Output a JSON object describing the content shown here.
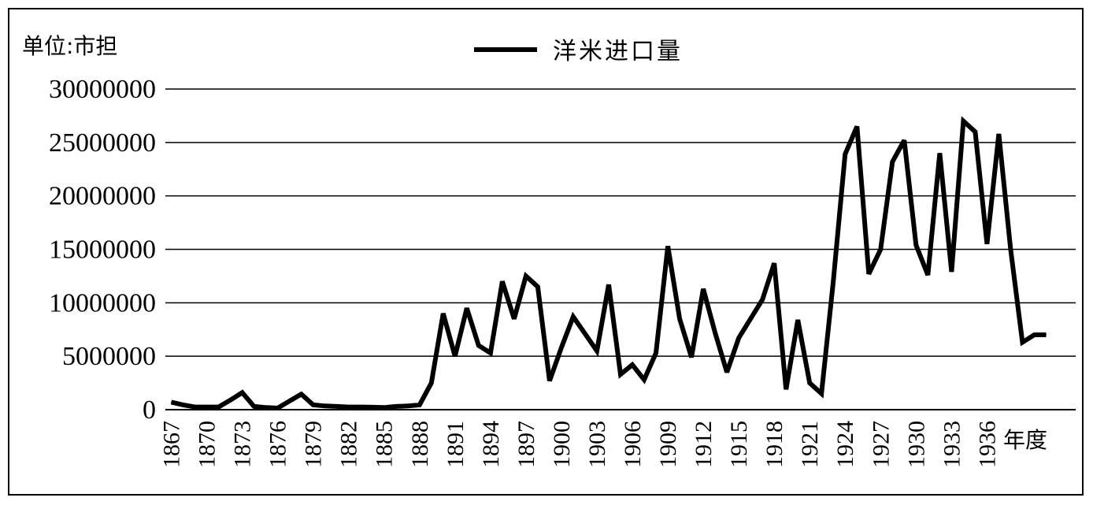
{
  "chart_data": {
    "type": "line",
    "unit_label": "单位:市担",
    "x_end_label": "年度",
    "legend_position": "top-center",
    "grid": true,
    "ylim": [
      0,
      30000000
    ],
    "y_ticks": [
      0,
      5000000,
      10000000,
      15000000,
      20000000,
      25000000,
      30000000
    ],
    "x_ticks": [
      1867,
      1870,
      1873,
      1876,
      1879,
      1882,
      1885,
      1888,
      1891,
      1894,
      1897,
      1900,
      1903,
      1906,
      1909,
      1912,
      1915,
      1918,
      1921,
      1924,
      1927,
      1930,
      1933,
      1936
    ],
    "colors": {
      "line": "#000000",
      "grid": "#000000"
    },
    "series": [
      {
        "name": "洋米进口量",
        "x": [
          1867,
          1868,
          1869,
          1870,
          1871,
          1872,
          1873,
          1874,
          1875,
          1876,
          1877,
          1878,
          1879,
          1880,
          1881,
          1882,
          1883,
          1884,
          1885,
          1886,
          1887,
          1888,
          1889,
          1890,
          1891,
          1892,
          1893,
          1894,
          1895,
          1896,
          1897,
          1898,
          1899,
          1900,
          1901,
          1902,
          1903,
          1904,
          1905,
          1906,
          1907,
          1908,
          1909,
          1910,
          1911,
          1912,
          1913,
          1914,
          1915,
          1916,
          1917,
          1918,
          1919,
          1920,
          1921,
          1922,
          1923,
          1924,
          1925,
          1926,
          1927,
          1928,
          1929,
          1930,
          1931,
          1932,
          1933,
          1934,
          1935,
          1936,
          1937,
          1938,
          1939,
          1940,
          1941
        ],
        "values": [
          700000,
          450000,
          250000,
          250000,
          250000,
          900000,
          1600000,
          300000,
          200000,
          150000,
          800000,
          1450000,
          450000,
          350000,
          300000,
          250000,
          250000,
          230000,
          200000,
          300000,
          350000,
          450000,
          2500000,
          9000000,
          5000000,
          9500000,
          6000000,
          5300000,
          12000000,
          8500000,
          12500000,
          11500000,
          2700000,
          5800000,
          8700000,
          7100000,
          5500000,
          11700000,
          3300000,
          4200000,
          2800000,
          5300000,
          15300000,
          8500000,
          4900000,
          11300000,
          7200000,
          3500000,
          6700000,
          8500000,
          10300000,
          13700000,
          1900000,
          8400000,
          2500000,
          1500000,
          12000000,
          23900000,
          26500000,
          12700000,
          15000000,
          23200000,
          25200000,
          15400000,
          12600000,
          24000000,
          12900000,
          27000000,
          26000000,
          15500000,
          25800000,
          15000000,
          6300000,
          7000000,
          7000000
        ]
      }
    ]
  }
}
